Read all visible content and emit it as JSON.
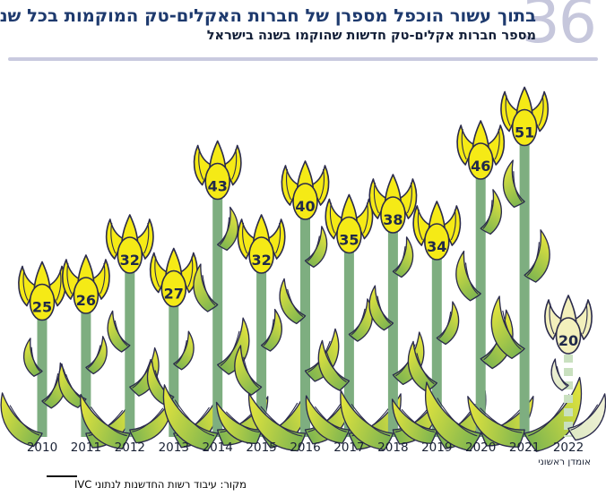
{
  "page_number": "36",
  "header": {
    "title": "בתוך עשור הוכפל מספרן של חברות האקלים-טק המוקמות בכל שנה",
    "subtitle": "מספר חברות אקלים-טק חדשות שהוקמו בשנה בישראל"
  },
  "chart_data": {
    "type": "bar",
    "style": "tulip-pictogram",
    "title": "מספר חברות אקלים-טק חדשות שהוקמו בשנה בישראל",
    "categories": [
      "2010",
      "2011",
      "2012",
      "2013",
      "2014",
      "2015",
      "2016",
      "2017",
      "2018",
      "2019",
      "2020",
      "2021",
      "2022"
    ],
    "values": [
      25,
      26,
      32,
      27,
      43,
      32,
      40,
      35,
      38,
      34,
      46,
      51,
      20
    ],
    "xlabel": "",
    "ylabel": "",
    "ylim": [
      0,
      55
    ],
    "grid": false,
    "legend": "none",
    "notes": [
      {
        "category": "2022",
        "label": "אומדן ראשוני",
        "style": "faded-preliminary-dashed-stem"
      }
    ]
  },
  "footer": {
    "estimate_note": "אומדן ראשוני",
    "source": "מקור: עיבוד רשות החדשנות לנתוני IVC"
  },
  "colors": {
    "title": "#1E3A6E",
    "subtitle": "#131F38",
    "page_number": "#C6C7DC",
    "divider": "#C9CADF",
    "flower_yellow": "#F5EA16",
    "flower_outline": "#2B2B4C",
    "stem_green": "#7EAE80",
    "leaf_green": "#6FAE53",
    "leaf_yellow": "#EDE93B",
    "faded_flower": "#F3F0BC",
    "faded_stem": "#C9E0BF",
    "faded_leaf_green": "#DCE8C2",
    "faded_leaf_light": "#F2F2D8",
    "year_label": "#1A2235",
    "number_text": "#20294A"
  }
}
